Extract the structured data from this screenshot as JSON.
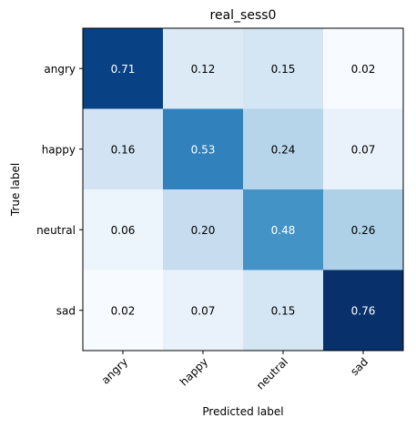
{
  "chart_data": {
    "type": "heatmap",
    "title": "real_sess0",
    "xlabel": "Predicted label",
    "ylabel": "True label",
    "x_categories": [
      "angry",
      "happy",
      "neutral",
      "sad"
    ],
    "y_categories": [
      "angry",
      "happy",
      "neutral",
      "sad"
    ],
    "values": [
      [
        "0.71",
        "0.12",
        "0.15",
        "0.02"
      ],
      [
        "0.16",
        "0.53",
        "0.24",
        "0.07"
      ],
      [
        "0.06",
        "0.20",
        "0.48",
        "0.26"
      ],
      [
        "0.02",
        "0.07",
        "0.15",
        "0.76"
      ]
    ],
    "colormap": "Blues",
    "color_range": [
      0.02,
      0.76
    ],
    "grid": false
  }
}
